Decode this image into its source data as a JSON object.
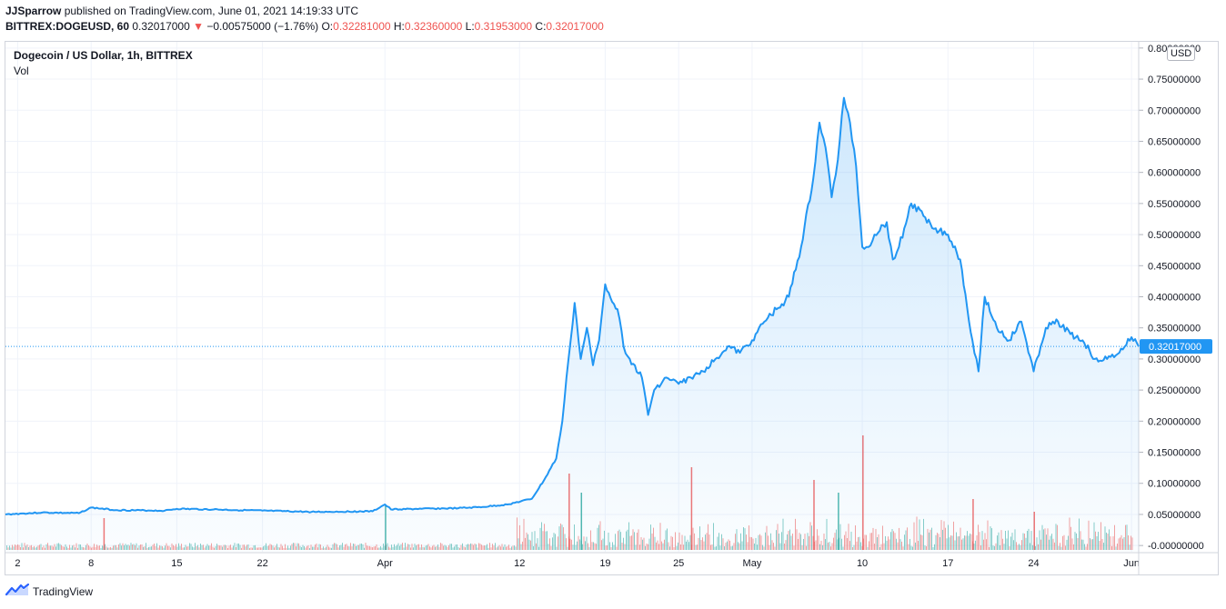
{
  "header": {
    "author": "JJSparrow",
    "published_text": "published on TradingView.com, June 01, 2021 14:19:33 UTC",
    "symbol": "BITTREX:DOGEUSD, 60",
    "last": "0.32017000",
    "arrow": "▼",
    "change": "−0.00575000 (−1.76%)",
    "o_label": "O:",
    "o_value": "0.32281000",
    "h_label": "H:",
    "h_value": "0.32360000",
    "l_label": "L:",
    "l_value": "0.31953000",
    "c_label": "C:",
    "c_value": "0.32017000"
  },
  "legend": {
    "title": "Dogecoin / US Dollar, 1h, BITTREX",
    "volume_label": "Vol"
  },
  "currency_badge": "USD",
  "price_label": "0.32017000",
  "footer": {
    "brand": "TradingView"
  },
  "colors": {
    "line": "#2196f3",
    "fill": "#2196f3",
    "price_label_bg": "#2196f3",
    "vol_up": "#26a69a",
    "vol_down": "#ef5350",
    "grid": "#f0f3fa"
  },
  "chart_data": {
    "type": "area",
    "title": "Dogecoin / US Dollar, 1h, BITTREX",
    "xlabel": "",
    "ylabel": "",
    "y_ticks": [
      "0.80000000",
      "0.75000000",
      "0.70000000",
      "0.65000000",
      "0.60000000",
      "0.55000000",
      "0.50000000",
      "0.45000000",
      "0.40000000",
      "0.35000000",
      "0.30000000",
      "0.25000000",
      "0.20000000",
      "0.15000000",
      "0.10000000",
      "0.05000000",
      "-0.00000000"
    ],
    "ylim": [
      -0.01,
      0.81
    ],
    "x_ticks": [
      "2",
      "8",
      "15",
      "22",
      "Apr",
      "12",
      "19",
      "25",
      "May",
      "10",
      "17",
      "24",
      "Jun"
    ],
    "x_tick_dates": [
      "2021-03-02",
      "2021-03-08",
      "2021-03-15",
      "2021-03-22",
      "2021-04-01",
      "2021-04-12",
      "2021-04-19",
      "2021-04-25",
      "2021-05-01",
      "2021-05-10",
      "2021-05-17",
      "2021-05-24",
      "2021-06-01"
    ],
    "xlim": [
      "2021-03-01",
      "2021-06-01 14:00"
    ],
    "grid": true,
    "series": [
      {
        "values_x": [
          "2021-03-01",
          "2021-03-04",
          "2021-03-07",
          "2021-03-08",
          "2021-03-10",
          "2021-03-14",
          "2021-03-15",
          "2021-03-18",
          "2021-03-22",
          "2021-03-26",
          "2021-03-31",
          "2021-04-01",
          "2021-04-01 12:00",
          "2021-04-04",
          "2021-04-07",
          "2021-04-09",
          "2021-04-11",
          "2021-04-13",
          "2021-04-14",
          "2021-04-15",
          "2021-04-15 12:00",
          "2021-04-16",
          "2021-04-16 12:00",
          "2021-04-17",
          "2021-04-17 12:00",
          "2021-04-18",
          "2021-04-18 12:00",
          "2021-04-19",
          "2021-04-20",
          "2021-04-20 12:00",
          "2021-04-21",
          "2021-04-22",
          "2021-04-22 12:00",
          "2021-04-23",
          "2021-04-24",
          "2021-04-25",
          "2021-04-26",
          "2021-04-27",
          "2021-04-28",
          "2021-04-29",
          "2021-04-30",
          "2021-05-01",
          "2021-05-02",
          "2021-05-03",
          "2021-05-04",
          "2021-05-05",
          "2021-05-06",
          "2021-05-06 12:00",
          "2021-05-07",
          "2021-05-07 12:00",
          "2021-05-08",
          "2021-05-08 12:00",
          "2021-05-09",
          "2021-05-09 12:00",
          "2021-05-10",
          "2021-05-10 12:00",
          "2021-05-11",
          "2021-05-12",
          "2021-05-12 12:00",
          "2021-05-13",
          "2021-05-14",
          "2021-05-15",
          "2021-05-16",
          "2021-05-17",
          "2021-05-18",
          "2021-05-19",
          "2021-05-19 12:00",
          "2021-05-20",
          "2021-05-21",
          "2021-05-22",
          "2021-05-23",
          "2021-05-24",
          "2021-05-25",
          "2021-05-26",
          "2021-05-27",
          "2021-05-28",
          "2021-05-29",
          "2021-05-30",
          "2021-05-31",
          "2021-06-01",
          "2021-06-01 14:00"
        ],
        "values": [
          0.05,
          0.053,
          0.052,
          0.061,
          0.057,
          0.056,
          0.059,
          0.058,
          0.056,
          0.054,
          0.055,
          0.066,
          0.058,
          0.059,
          0.06,
          0.062,
          0.066,
          0.075,
          0.105,
          0.14,
          0.2,
          0.3,
          0.39,
          0.3,
          0.35,
          0.29,
          0.33,
          0.42,
          0.38,
          0.32,
          0.3,
          0.27,
          0.21,
          0.25,
          0.27,
          0.26,
          0.27,
          0.28,
          0.3,
          0.32,
          0.31,
          0.33,
          0.36,
          0.38,
          0.4,
          0.48,
          0.59,
          0.68,
          0.64,
          0.56,
          0.62,
          0.72,
          0.68,
          0.61,
          0.48,
          0.48,
          0.5,
          0.52,
          0.46,
          0.48,
          0.55,
          0.53,
          0.51,
          0.5,
          0.46,
          0.33,
          0.28,
          0.4,
          0.35,
          0.33,
          0.36,
          0.28,
          0.35,
          0.36,
          0.34,
          0.33,
          0.3,
          0.3,
          0.31,
          0.335,
          0.32
        ]
      }
    ],
    "volume_scale_note": "",
    "volume_peaks": [
      {
        "x": "2021-03-09",
        "value": 0.05,
        "dir": "down"
      },
      {
        "x": "2021-04-01",
        "value": 0.07,
        "dir": "up"
      },
      {
        "x": "2021-04-16",
        "value": 0.12,
        "dir": "down"
      },
      {
        "x": "2021-04-17",
        "value": 0.09,
        "dir": "up"
      },
      {
        "x": "2021-04-26",
        "value": 0.13,
        "dir": "down"
      },
      {
        "x": "2021-05-06",
        "value": 0.11,
        "dir": "down"
      },
      {
        "x": "2021-05-08",
        "value": 0.09,
        "dir": "up"
      },
      {
        "x": "2021-05-10",
        "value": 0.18,
        "dir": "down"
      },
      {
        "x": "2021-05-19",
        "value": 0.08,
        "dir": "down"
      },
      {
        "x": "2021-05-24",
        "value": 0.06,
        "dir": "down"
      }
    ]
  }
}
